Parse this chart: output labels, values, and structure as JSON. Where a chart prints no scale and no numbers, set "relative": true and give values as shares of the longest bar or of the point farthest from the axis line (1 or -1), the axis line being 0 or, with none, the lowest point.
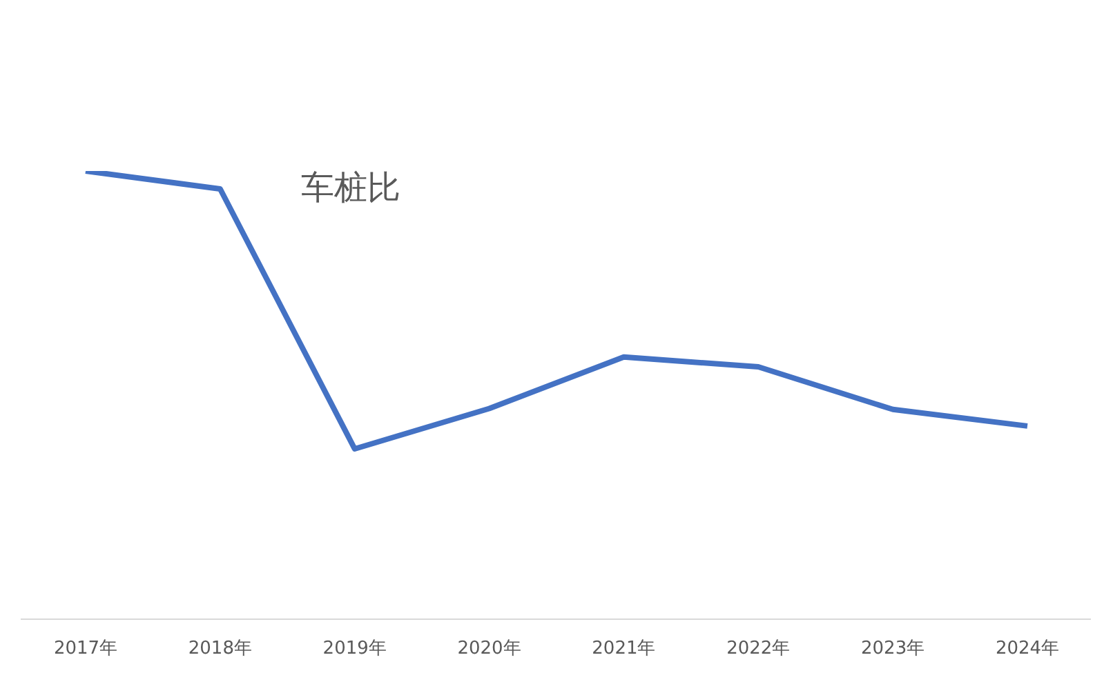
{
  "chart_data": {
    "type": "line",
    "title": "车桩比",
    "categories": [
      "2017年",
      "2018年",
      "2019年",
      "2020年",
      "2021年",
      "2022年",
      "2023年",
      "2024年"
    ],
    "series": [
      {
        "color": "#4472c4",
        "values": [
          1,
          0.96,
          0.38,
          0.47,
          0.585,
          0.563,
          0.468,
          0.431
        ]
      }
    ],
    "relative": true
  }
}
